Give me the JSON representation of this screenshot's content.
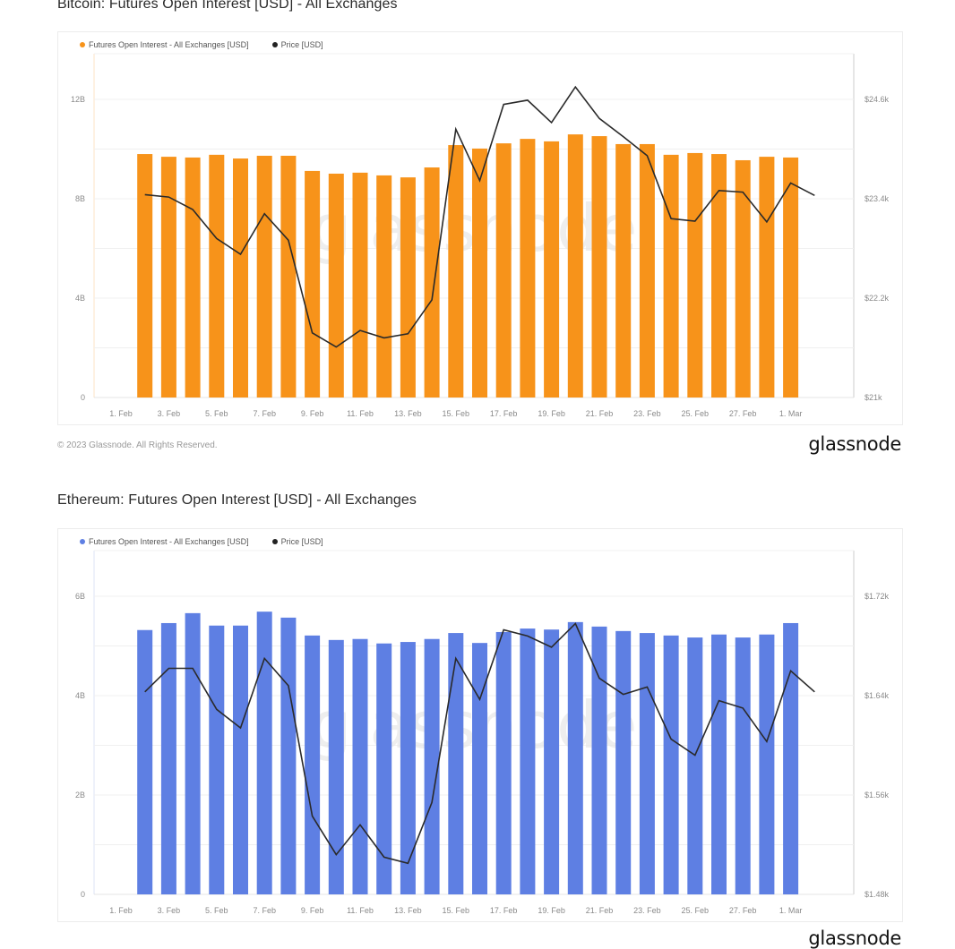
{
  "page": {
    "copyright": "© 2023 Glassnode. All Rights Reserved.",
    "brand": "glassnode",
    "watermark": "glassnode"
  },
  "chart_data": [
    {
      "type": "bar",
      "title": "Bitcoin: Futures Open Interest [USD] - All Exchanges",
      "xlabel": "",
      "ylabel": "",
      "grid": true,
      "legend_placement": "top-left",
      "legend": [
        {
          "label": "Futures Open Interest - All Exchanges [USD]",
          "color": "#f7931a"
        },
        {
          "label": "Price [USD]",
          "color": "#222222"
        }
      ],
      "x_tick_labels": [
        "1. Feb",
        "3. Feb",
        "5. Feb",
        "7. Feb",
        "9. Feb",
        "11. Feb",
        "13. Feb",
        "15. Feb",
        "17. Feb",
        "19. Feb",
        "21. Feb",
        "23. Feb",
        "25. Feb",
        "27. Feb",
        "1. Mar"
      ],
      "x_range_days": [
        0,
        30
      ],
      "left_axis": {
        "ticks": [
          "0",
          "4B",
          "8B",
          "12B"
        ],
        "tick_values": [
          0,
          4,
          8,
          12
        ],
        "range": [
          0,
          14
        ],
        "unit": "B USD"
      },
      "right_axis": {
        "ticks": [
          "$21k",
          "$22.2k",
          "$23.4k",
          "$24.6k"
        ],
        "tick_values": [
          21,
          22.2,
          23.4,
          24.6
        ],
        "range": [
          21,
          25.2
        ],
        "unit": "k USD"
      },
      "bar_series": {
        "name": "Futures Open Interest - All Exchanges [USD]",
        "color": "#f7931a",
        "start_day": 1,
        "values": [
          9.8,
          9.69,
          9.66,
          9.77,
          9.62,
          9.73,
          9.73,
          9.12,
          9.01,
          9.05,
          8.94,
          8.86,
          9.26,
          10.16,
          10.02,
          10.23,
          10.41,
          10.31,
          10.59,
          10.52,
          10.2,
          10.2,
          9.77,
          9.84,
          9.8,
          9.55,
          9.69,
          9.66
        ]
      },
      "line_series": {
        "name": "Price [USD]",
        "color": "#2a2a2a",
        "start_day": 1,
        "values": [
          23.45,
          23.42,
          23.27,
          22.92,
          22.73,
          23.22,
          22.9,
          21.78,
          21.61,
          21.81,
          21.72,
          21.77,
          22.18,
          24.24,
          23.62,
          24.54,
          24.59,
          24.32,
          24.75,
          24.37,
          24.15,
          23.92,
          23.16,
          23.13,
          23.5,
          23.48,
          23.12,
          23.59,
          23.44
        ]
      }
    },
    {
      "type": "bar",
      "title": "Ethereum: Futures Open Interest [USD] - All Exchanges",
      "xlabel": "",
      "ylabel": "",
      "grid": true,
      "legend_placement": "top-left",
      "legend": [
        {
          "label": "Futures Open Interest - All Exchanges [USD]",
          "color": "#5e7fe3"
        },
        {
          "label": "Price [USD]",
          "color": "#222222"
        }
      ],
      "x_tick_labels": [
        "1. Feb",
        "3. Feb",
        "5. Feb",
        "7. Feb",
        "9. Feb",
        "11. Feb",
        "13. Feb",
        "15. Feb",
        "17. Feb",
        "19. Feb",
        "21. Feb",
        "23. Feb",
        "25. Feb",
        "27. Feb",
        "1. Mar"
      ],
      "x_range_days": [
        0,
        30
      ],
      "left_axis": {
        "ticks": [
          "0",
          "2B",
          "4B",
          "6B"
        ],
        "tick_values": [
          0,
          2,
          4,
          6
        ],
        "range": [
          0,
          7
        ],
        "unit": "B USD"
      },
      "right_axis": {
        "ticks": [
          "$1.48k",
          "$1.56k",
          "$1.64k",
          "$1.72k"
        ],
        "tick_values": [
          1.48,
          1.56,
          1.64,
          1.72
        ],
        "range": [
          1.48,
          1.76
        ],
        "unit": "k USD"
      },
      "bar_series": {
        "name": "Futures Open Interest - All Exchanges [USD]",
        "color": "#5e7fe3",
        "start_day": 1,
        "values": [
          5.32,
          5.46,
          5.66,
          5.41,
          5.41,
          5.69,
          5.57,
          5.21,
          5.12,
          5.14,
          5.05,
          5.08,
          5.14,
          5.26,
          5.06,
          5.28,
          5.35,
          5.33,
          5.48,
          5.39,
          5.3,
          5.26,
          5.21,
          5.17,
          5.23,
          5.17,
          5.23,
          5.46
        ]
      },
      "line_series": {
        "name": "Price [USD]",
        "color": "#2a2a2a",
        "start_day": 1,
        "values": [
          1.643,
          1.662,
          1.662,
          1.629,
          1.614,
          1.67,
          1.648,
          1.543,
          1.512,
          1.536,
          1.51,
          1.505,
          1.554,
          1.67,
          1.637,
          1.693,
          1.688,
          1.679,
          1.698,
          1.654,
          1.641,
          1.647,
          1.605,
          1.592,
          1.636,
          1.63,
          1.603,
          1.66,
          1.643
        ]
      }
    }
  ]
}
